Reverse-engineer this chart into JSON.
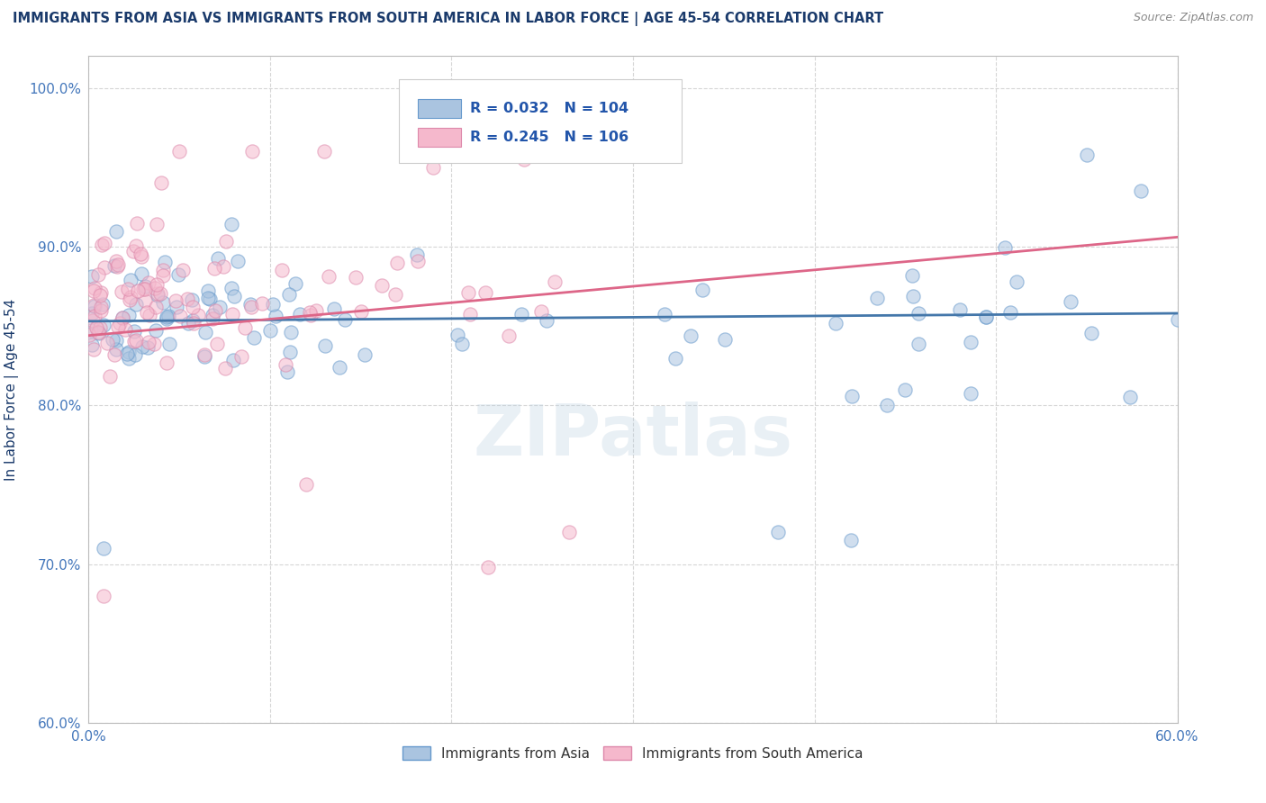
{
  "title": "IMMIGRANTS FROM ASIA VS IMMIGRANTS FROM SOUTH AMERICA IN LABOR FORCE | AGE 45-54 CORRELATION CHART",
  "source": "Source: ZipAtlas.com",
  "ylabel": "In Labor Force | Age 45-54",
  "xlim": [
    0.0,
    0.6
  ],
  "ylim": [
    0.6,
    1.02
  ],
  "xtick_labels": [
    "0.0%",
    "",
    "",
    "",
    "",
    "",
    "60.0%"
  ],
  "ytick_labels": [
    "60.0%",
    "70.0%",
    "80.0%",
    "90.0%",
    "100.0%"
  ],
  "asia_color": "#aac4e0",
  "asia_edge": "#6699cc",
  "asia_line_color": "#4477aa",
  "south_america_color": "#f5b8cc",
  "south_america_edge": "#dd88aa",
  "south_america_line_color": "#dd6688",
  "R_asia": 0.032,
  "N_asia": 104,
  "R_sa": 0.245,
  "N_sa": 106,
  "watermark": "ZIPatlas",
  "legend_label_asia": "Immigrants from Asia",
  "legend_label_sa": "Immigrants from South America",
  "title_color": "#1a3a6b",
  "axis_label_color": "#1a3a6b",
  "tick_color": "#4477bb",
  "legend_text_color": "#2255aa",
  "background_color": "#ffffff",
  "grid_color": "#cccccc",
  "scatter_size": 120,
  "scatter_alpha": 0.55,
  "asia_trend_x": [
    0.0,
    0.6
  ],
  "asia_trend_y": [
    0.853,
    0.858
  ],
  "sa_trend_x": [
    0.0,
    0.6
  ],
  "sa_trend_y": [
    0.844,
    0.906
  ]
}
